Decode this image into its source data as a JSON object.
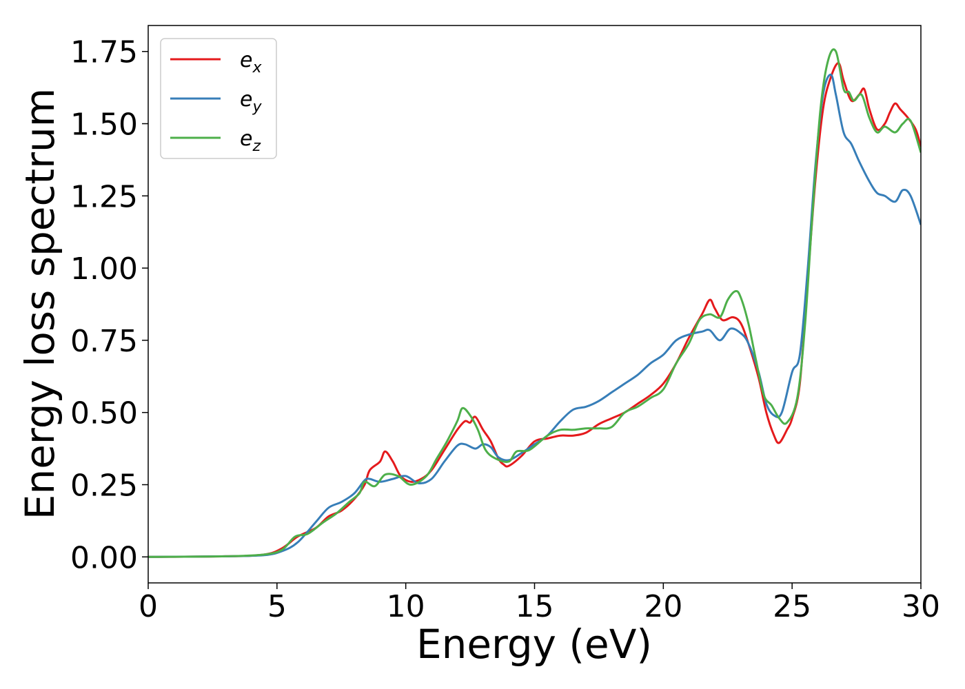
{
  "chart_data": {
    "type": "line",
    "xlabel": "Energy (eV)",
    "ylabel": "Energy loss spectrum",
    "xlim": [
      0,
      30
    ],
    "ylim": [
      -0.09,
      1.84
    ],
    "xticks": [
      0,
      5,
      10,
      15,
      20,
      25,
      30
    ],
    "xtick_labels": [
      "0",
      "5",
      "10",
      "15",
      "20",
      "25",
      "30"
    ],
    "yticks": [
      0,
      0.25,
      0.5,
      0.75,
      1.0,
      1.25,
      1.5,
      1.75
    ],
    "ytick_labels": [
      "0.00",
      "0.25",
      "0.50",
      "0.75",
      "1.00",
      "1.25",
      "1.50",
      "1.75"
    ],
    "grid": false,
    "legend_position": "top-left",
    "series": [
      {
        "base": "e",
        "sub": "x",
        "color": "#e41a1c",
        "points": [
          [
            0,
            0
          ],
          [
            3,
            0.002
          ],
          [
            4.5,
            0.008
          ],
          [
            5.2,
            0.03
          ],
          [
            5.8,
            0.07
          ],
          [
            6.5,
            0.1
          ],
          [
            7,
            0.14
          ],
          [
            7.5,
            0.16
          ],
          [
            8,
            0.2
          ],
          [
            8.4,
            0.25
          ],
          [
            8.6,
            0.3
          ],
          [
            9,
            0.33
          ],
          [
            9.2,
            0.365
          ],
          [
            9.5,
            0.33
          ],
          [
            9.8,
            0.28
          ],
          [
            10.2,
            0.26
          ],
          [
            10.6,
            0.27
          ],
          [
            11,
            0.3
          ],
          [
            11.5,
            0.37
          ],
          [
            12,
            0.44
          ],
          [
            12.3,
            0.47
          ],
          [
            12.5,
            0.465
          ],
          [
            12.7,
            0.485
          ],
          [
            13,
            0.44
          ],
          [
            13.3,
            0.4
          ],
          [
            13.6,
            0.34
          ],
          [
            13.8,
            0.32
          ],
          [
            14,
            0.315
          ],
          [
            14.5,
            0.35
          ],
          [
            15,
            0.4
          ],
          [
            15.5,
            0.41
          ],
          [
            16,
            0.42
          ],
          [
            16.5,
            0.42
          ],
          [
            17,
            0.43
          ],
          [
            17.5,
            0.46
          ],
          [
            18,
            0.48
          ],
          [
            18.5,
            0.5
          ],
          [
            19,
            0.53
          ],
          [
            19.5,
            0.56
          ],
          [
            20,
            0.6
          ],
          [
            20.5,
            0.67
          ],
          [
            21,
            0.76
          ],
          [
            21.5,
            0.84
          ],
          [
            21.8,
            0.89
          ],
          [
            22,
            0.86
          ],
          [
            22.3,
            0.82
          ],
          [
            22.7,
            0.83
          ],
          [
            23,
            0.81
          ],
          [
            23.3,
            0.74
          ],
          [
            23.7,
            0.62
          ],
          [
            24,
            0.5
          ],
          [
            24.3,
            0.42
          ],
          [
            24.5,
            0.395
          ],
          [
            24.8,
            0.44
          ],
          [
            25,
            0.48
          ],
          [
            25.3,
            0.6
          ],
          [
            25.6,
            0.95
          ],
          [
            25.9,
            1.3
          ],
          [
            26.2,
            1.55
          ],
          [
            26.5,
            1.66
          ],
          [
            26.8,
            1.71
          ],
          [
            27,
            1.65
          ],
          [
            27.3,
            1.58
          ],
          [
            27.6,
            1.6
          ],
          [
            27.8,
            1.62
          ],
          [
            28,
            1.55
          ],
          [
            28.3,
            1.48
          ],
          [
            28.6,
            1.5
          ],
          [
            28.8,
            1.54
          ],
          [
            29,
            1.57
          ],
          [
            29.2,
            1.55
          ],
          [
            29.5,
            1.52
          ],
          [
            29.8,
            1.48
          ],
          [
            30,
            1.42
          ]
        ]
      },
      {
        "base": "e",
        "sub": "y",
        "color": "#377eb8",
        "points": [
          [
            0,
            0
          ],
          [
            3,
            0.002
          ],
          [
            4.5,
            0.006
          ],
          [
            5.2,
            0.02
          ],
          [
            5.8,
            0.05
          ],
          [
            6.5,
            0.12
          ],
          [
            7,
            0.17
          ],
          [
            7.5,
            0.19
          ],
          [
            8,
            0.22
          ],
          [
            8.4,
            0.265
          ],
          [
            8.6,
            0.27
          ],
          [
            9,
            0.26
          ],
          [
            9.5,
            0.27
          ],
          [
            10,
            0.28
          ],
          [
            10.5,
            0.255
          ],
          [
            11,
            0.27
          ],
          [
            11.5,
            0.33
          ],
          [
            12,
            0.385
          ],
          [
            12.3,
            0.39
          ],
          [
            12.7,
            0.375
          ],
          [
            13,
            0.39
          ],
          [
            13.3,
            0.38
          ],
          [
            13.6,
            0.345
          ],
          [
            14,
            0.335
          ],
          [
            14.5,
            0.36
          ],
          [
            15,
            0.39
          ],
          [
            15.5,
            0.42
          ],
          [
            16,
            0.47
          ],
          [
            16.5,
            0.51
          ],
          [
            17,
            0.52
          ],
          [
            17.5,
            0.54
          ],
          [
            18,
            0.57
          ],
          [
            18.5,
            0.6
          ],
          [
            19,
            0.63
          ],
          [
            19.5,
            0.67
          ],
          [
            20,
            0.7
          ],
          [
            20.5,
            0.75
          ],
          [
            21,
            0.77
          ],
          [
            21.5,
            0.78
          ],
          [
            21.8,
            0.785
          ],
          [
            22.2,
            0.75
          ],
          [
            22.6,
            0.79
          ],
          [
            23,
            0.775
          ],
          [
            23.3,
            0.74
          ],
          [
            23.7,
            0.64
          ],
          [
            24,
            0.53
          ],
          [
            24.3,
            0.49
          ],
          [
            24.6,
            0.5
          ],
          [
            25,
            0.64
          ],
          [
            25.3,
            0.7
          ],
          [
            25.6,
            0.99
          ],
          [
            25.9,
            1.35
          ],
          [
            26.2,
            1.6
          ],
          [
            26.5,
            1.67
          ],
          [
            26.7,
            1.6
          ],
          [
            27,
            1.47
          ],
          [
            27.3,
            1.43
          ],
          [
            27.6,
            1.37
          ],
          [
            28,
            1.3
          ],
          [
            28.3,
            1.26
          ],
          [
            28.6,
            1.25
          ],
          [
            29,
            1.23
          ],
          [
            29.3,
            1.27
          ],
          [
            29.6,
            1.25
          ],
          [
            30,
            1.15
          ]
        ]
      },
      {
        "base": "e",
        "sub": "z",
        "color": "#4daf4a",
        "points": [
          [
            0,
            0
          ],
          [
            3,
            0.002
          ],
          [
            4.5,
            0.008
          ],
          [
            5.2,
            0.025
          ],
          [
            5.7,
            0.07
          ],
          [
            6.2,
            0.08
          ],
          [
            6.8,
            0.12
          ],
          [
            7.3,
            0.15
          ],
          [
            7.8,
            0.19
          ],
          [
            8.2,
            0.22
          ],
          [
            8.4,
            0.26
          ],
          [
            8.8,
            0.245
          ],
          [
            9.2,
            0.285
          ],
          [
            9.7,
            0.28
          ],
          [
            10.2,
            0.25
          ],
          [
            10.8,
            0.28
          ],
          [
            11.2,
            0.34
          ],
          [
            11.6,
            0.4
          ],
          [
            12,
            0.47
          ],
          [
            12.2,
            0.515
          ],
          [
            12.5,
            0.49
          ],
          [
            12.8,
            0.44
          ],
          [
            13.1,
            0.37
          ],
          [
            13.5,
            0.34
          ],
          [
            14,
            0.33
          ],
          [
            14.3,
            0.365
          ],
          [
            14.8,
            0.37
          ],
          [
            15.5,
            0.42
          ],
          [
            16,
            0.44
          ],
          [
            16.5,
            0.44
          ],
          [
            17,
            0.445
          ],
          [
            17.5,
            0.445
          ],
          [
            18,
            0.45
          ],
          [
            18.5,
            0.5
          ],
          [
            19,
            0.52
          ],
          [
            19.5,
            0.55
          ],
          [
            20,
            0.58
          ],
          [
            20.5,
            0.67
          ],
          [
            21,
            0.74
          ],
          [
            21.4,
            0.82
          ],
          [
            21.8,
            0.84
          ],
          [
            22.2,
            0.83
          ],
          [
            22.5,
            0.89
          ],
          [
            22.8,
            0.92
          ],
          [
            23,
            0.9
          ],
          [
            23.3,
            0.81
          ],
          [
            23.6,
            0.68
          ],
          [
            23.9,
            0.56
          ],
          [
            24.2,
            0.525
          ],
          [
            24.5,
            0.48
          ],
          [
            24.8,
            0.465
          ],
          [
            25.2,
            0.55
          ],
          [
            25.5,
            0.8
          ],
          [
            25.8,
            1.2
          ],
          [
            26.1,
            1.55
          ],
          [
            26.4,
            1.72
          ],
          [
            26.7,
            1.75
          ],
          [
            27,
            1.62
          ],
          [
            27.2,
            1.61
          ],
          [
            27.4,
            1.58
          ],
          [
            27.7,
            1.6
          ],
          [
            28,
            1.52
          ],
          [
            28.3,
            1.47
          ],
          [
            28.6,
            1.49
          ],
          [
            29,
            1.47
          ],
          [
            29.3,
            1.5
          ],
          [
            29.6,
            1.51
          ],
          [
            30,
            1.4
          ]
        ]
      }
    ]
  }
}
